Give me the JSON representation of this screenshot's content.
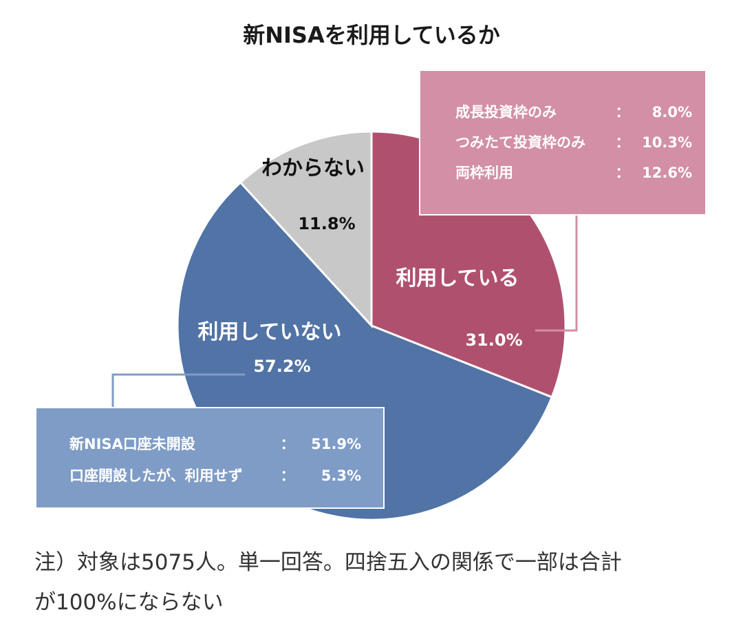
{
  "chart_data": {
    "type": "pie",
    "title": "新NISAを利用しているか",
    "slices": [
      {
        "label": "利用している",
        "value": 31.0,
        "value_label": "31.0%",
        "color": "#b0506f"
      },
      {
        "label": "利用していない",
        "value": 57.2,
        "value_label": "57.2%",
        "color": "#5173a6"
      },
      {
        "label": "わからない",
        "value": 11.8,
        "value_label": "11.8%",
        "color": "#c8c8c8"
      }
    ],
    "annotations": [
      {
        "slice": "利用している",
        "color": "#d28fa5",
        "rows": [
          {
            "name": "成長投資枠のみ",
            "sep": "：",
            "value": "8.0%"
          },
          {
            "name": "つみたて投資枠のみ",
            "sep": "：",
            "value": "10.3%"
          },
          {
            "name": "両枠利用",
            "sep": "：",
            "value": "12.6%"
          }
        ]
      },
      {
        "slice": "利用していない",
        "color": "#7f9cc6",
        "rows": [
          {
            "name": "新NISA口座未開設",
            "sep": "：",
            "value": "51.9%"
          },
          {
            "name": "口座開設したが、利用せず",
            "sep": "：",
            "value": "5.3%"
          }
        ]
      }
    ]
  },
  "note": {
    "line1": "注）対象は5075人。単一回答。四捨五入の関係で一部は合計",
    "line2": "が100%にならない"
  }
}
